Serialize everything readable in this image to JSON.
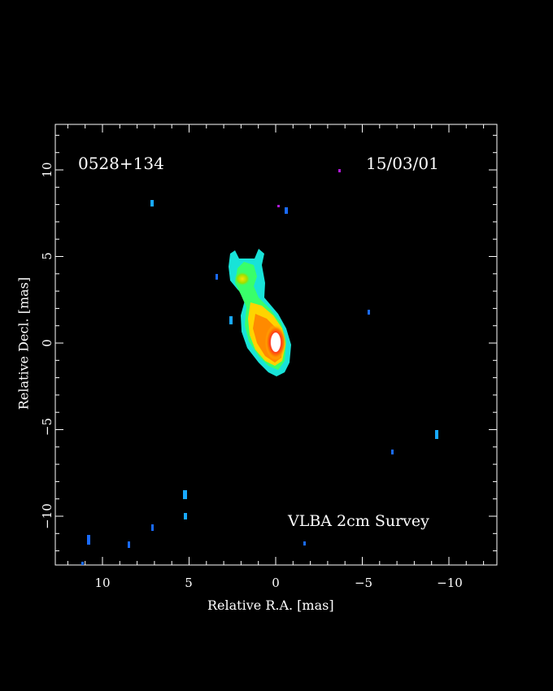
{
  "image": {
    "source_name": "0528+134",
    "date": "15/03/01",
    "survey": "VLBA 2cm Survey",
    "x_axis_label": "Relative R.A. [mas]",
    "y_axis_label": "Relative Decl. [mas]",
    "x_ticks": [
      "10",
      "5",
      "0",
      "−5",
      "−10"
    ],
    "y_ticks": [
      "10",
      "5",
      "0",
      "−5",
      "−10"
    ],
    "colors": {
      "background": "#000000",
      "frame": "#ffffff",
      "core": "#ffffff",
      "hot": "#ff2a00",
      "warm": "#ffd400",
      "mid": "#39ff6a",
      "cool": "#18e3d8",
      "faint": "#1a6bff"
    }
  }
}
